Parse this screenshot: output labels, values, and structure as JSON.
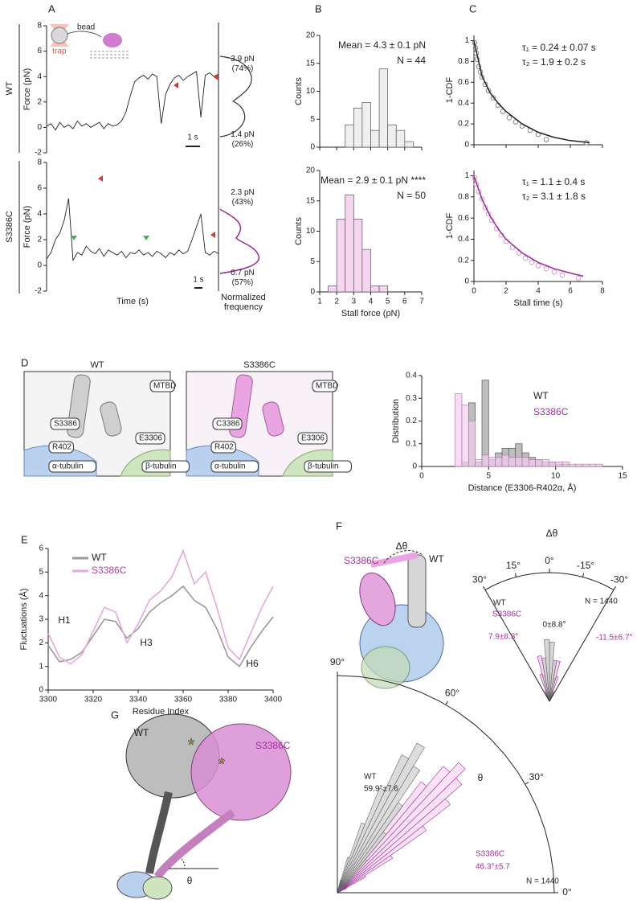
{
  "figure": {
    "panel_labels": [
      "A",
      "B",
      "C",
      "D",
      "E",
      "F",
      "G"
    ],
    "row_labels": [
      "WT",
      "S3386C"
    ],
    "a_inset": [
      "bead",
      "trap"
    ],
    "a_side_label": "Normalized frequency",
    "d_images": [
      {
        "title": "WT",
        "labels": [
          "MTBD",
          "S3386",
          "E3306",
          "R402",
          "α-tubulin",
          "β-tubulin"
        ]
      },
      {
        "title": "S3386C",
        "labels": [
          "MTBD",
          "C3386",
          "E3306",
          "R402",
          "α-tubulin",
          "β-tubulin"
        ]
      }
    ],
    "f_structure": [
      "S3386C",
      "WT",
      "Δθ"
    ],
    "g_structure": [
      "WT",
      "S3386C",
      "θ"
    ]
  },
  "chart_data": [
    {
      "type": "line",
      "ylabel": "Force (pN)",
      "color": "#222222",
      "ylim": [
        -2,
        8
      ],
      "yticks": [
        -2,
        0,
        2,
        4,
        6,
        8
      ],
      "values": [
        0.1,
        0.3,
        -0.2,
        0.4,
        0,
        0.2,
        -0.1,
        0.5,
        0.1,
        0.3,
        0,
        0.2,
        0.4,
        -0.1,
        0.3,
        0.1,
        0.2,
        0.5,
        1.2,
        2.5,
        3.6,
        3.9,
        4.1,
        3.8,
        4.2,
        4.0,
        0.3,
        2.6,
        3.4,
        3.9,
        4.1,
        3.7,
        4.0,
        4.2,
        4.4,
        0.8,
        4.1,
        4.3,
        4.0,
        4.2
      ],
      "annotations": [
        "3.9 pN (74%)",
        "1.4 pN (26%)",
        "1 s"
      ]
    },
    {
      "type": "line",
      "ylabel": "Force (pN)",
      "xlabel": "Time (s)",
      "color": "#222222",
      "ylim": [
        -2,
        8
      ],
      "yticks": [
        -2,
        0,
        2,
        4,
        6,
        8
      ],
      "values": [
        0.5,
        1.0,
        2.0,
        2.5,
        3.5,
        5.2,
        0.4,
        1.0,
        0.8,
        1.5,
        1.1,
        0.9,
        1.3,
        0.7,
        1.2,
        1.0,
        0.8,
        1.1,
        0.6,
        1.0,
        0.9,
        1.2,
        0.8,
        1.0,
        0.7,
        1.1,
        0.9,
        0.6,
        1.0,
        0.8,
        1.2,
        0.9,
        1.1,
        2.0,
        3.0,
        4.0,
        1.0,
        0.8,
        1.1,
        0.9
      ],
      "annotations": [
        "2.3 pN (43%)",
        "0.7 pN (57%)",
        "1 s"
      ]
    },
    {
      "type": "histogram",
      "ylabel": "Counts",
      "color": "#efefef",
      "xlim": [
        1,
        7
      ],
      "xticks": [
        1,
        2,
        3,
        4,
        5,
        6,
        7
      ],
      "ylim": [
        0,
        20
      ],
      "yticks": [
        0,
        5,
        10,
        15,
        20
      ],
      "bins": [
        2.5,
        3,
        3.5,
        4,
        4.5,
        5,
        5.5,
        6,
        6.5
      ],
      "values": [
        4,
        7,
        8,
        3,
        14,
        4,
        3,
        1
      ],
      "annotations": [
        "Mean = 4.3 ± 0.1 pN",
        "N = 44"
      ]
    },
    {
      "type": "histogram",
      "ylabel": "Counts",
      "xlabel": "Stall force (pN)",
      "color": "#f6d5f1",
      "xlim": [
        1,
        7
      ],
      "xticks": [
        1,
        2,
        3,
        4,
        5,
        6,
        7
      ],
      "ylim": [
        0,
        20
      ],
      "yticks": [
        0,
        5,
        10,
        15,
        20
      ],
      "bins": [
        1.5,
        2,
        2.5,
        3,
        3.5,
        4,
        4.5,
        5
      ],
      "values": [
        1,
        12,
        16,
        12,
        7,
        1,
        1
      ],
      "annotations": [
        "Mean = 2.9 ± 0.1 pN ****",
        "N = 50"
      ]
    },
    {
      "type": "scatter",
      "ylabel": "1-CDF",
      "xlim": [
        0,
        8
      ],
      "xticks": [
        0,
        2,
        4,
        6,
        8
      ],
      "ylim": [
        0,
        1.05
      ],
      "yticks": [
        0,
        0.2,
        0.4,
        0.6,
        0.8,
        1
      ],
      "series": [
        {
          "kind": "markers",
          "color": "#888888",
          "x": [
            0.05,
            0.1,
            0.15,
            0.2,
            0.3,
            0.4,
            0.5,
            0.7,
            0.9,
            1.2,
            1.5,
            1.8,
            2.2,
            2.6,
            3.0,
            3.5,
            4.0,
            4.5,
            7.0
          ],
          "values": [
            0.98,
            0.93,
            0.88,
            0.82,
            0.75,
            0.7,
            0.65,
            0.58,
            0.52,
            0.45,
            0.38,
            0.32,
            0.26,
            0.22,
            0.18,
            0.14,
            0.1,
            0.05,
            0.02
          ]
        },
        {
          "kind": "line",
          "color": "#222222",
          "x": [
            0,
            0.5,
            1,
            1.5,
            2,
            3,
            4,
            5,
            6,
            7.2
          ],
          "values": [
            1,
            0.66,
            0.5,
            0.4,
            0.32,
            0.2,
            0.12,
            0.07,
            0.04,
            0.02
          ]
        }
      ],
      "annotations": [
        "τ₁ = 0.24 ± 0.07 s",
        "τ₂ = 1.9 ± 0.2 s"
      ]
    },
    {
      "type": "scatter",
      "ylabel": "1-CDF",
      "xlabel": "Stall time (s)",
      "xlim": [
        0,
        8
      ],
      "xticks": [
        0,
        2,
        4,
        6,
        8
      ],
      "ylim": [
        0,
        1.05
      ],
      "yticks": [
        0,
        0.2,
        0.4,
        0.6,
        0.8,
        1
      ],
      "series": [
        {
          "kind": "markers",
          "color": "#d69ad2",
          "x": [
            0.05,
            0.15,
            0.3,
            0.5,
            0.7,
            0.9,
            1.1,
            1.4,
            1.7,
            2.0,
            2.4,
            2.8,
            3.2,
            3.6,
            4.0,
            4.5,
            5.0,
            5.5,
            6.5
          ],
          "values": [
            0.98,
            0.92,
            0.85,
            0.78,
            0.7,
            0.64,
            0.58,
            0.5,
            0.44,
            0.38,
            0.32,
            0.27,
            0.22,
            0.18,
            0.15,
            0.12,
            0.09,
            0.06,
            0.03
          ]
        },
        {
          "kind": "line",
          "color": "#9a2a94",
          "x": [
            0,
            0.5,
            1,
            1.5,
            2,
            3,
            4,
            5,
            6,
            6.8
          ],
          "values": [
            1,
            0.78,
            0.62,
            0.5,
            0.4,
            0.27,
            0.18,
            0.12,
            0.08,
            0.05
          ]
        }
      ],
      "annotations": [
        "τ₁ = 1.1 ± 0.4 s",
        "τ₂ = 3.1 ± 1.8 s"
      ]
    },
    {
      "type": "histogram",
      "ylabel": "Distribution",
      "xlabel": "Distance (E3306-R402α, Å)",
      "xlim": [
        0,
        15
      ],
      "xticks": [
        0,
        5,
        10,
        15
      ],
      "ylim": [
        0,
        0.4
      ],
      "yticks": [
        0,
        0.1,
        0.2,
        0.3,
        0.4
      ],
      "bins": [
        2.5,
        3,
        3.5,
        4,
        4.5,
        5,
        5.5,
        6,
        6.5,
        7,
        7.5,
        8,
        8.5,
        9,
        9.5,
        10,
        10.5,
        11,
        11.5,
        12,
        12.5,
        13,
        13.5
      ],
      "series": [
        {
          "name": "WT",
          "color": "#bdbdbd",
          "values": [
            0,
            0.02,
            0.28,
            0.02,
            0.38,
            0.03,
            0.06,
            0.08,
            0.08,
            0.1,
            0.06,
            0.04,
            0.03,
            0.02,
            0.02,
            0.01,
            0.01,
            0,
            0,
            0,
            0,
            0
          ]
        },
        {
          "name": "S3386C",
          "color": "#f3cdee",
          "values": [
            0.32,
            0.27,
            0.2,
            0.03,
            0.05,
            0.04,
            0.04,
            0.05,
            0.04,
            0.04,
            0.04,
            0.03,
            0.03,
            0.03,
            0.02,
            0.02,
            0.02,
            0.01,
            0.01,
            0.01,
            0.01,
            0.01
          ]
        }
      ]
    },
    {
      "type": "line",
      "ylabel": "Fluctuations (Å)",
      "xlabel": "Residue Index",
      "xlim": [
        3300,
        3400
      ],
      "xticks": [
        3300,
        3320,
        3340,
        3360,
        3380,
        3400
      ],
      "ylim": [
        0,
        6
      ],
      "yticks": [
        0,
        1,
        2,
        3,
        4,
        5,
        6
      ],
      "x": [
        3300,
        3305,
        3310,
        3315,
        3320,
        3325,
        3330,
        3335,
        3340,
        3345,
        3350,
        3355,
        3360,
        3365,
        3370,
        3375,
        3380,
        3385,
        3390,
        3395,
        3400
      ],
      "series": [
        {
          "name": "WT",
          "color": "#9a9a9a",
          "values": [
            1.9,
            1.2,
            1.3,
            1.6,
            2.3,
            3.0,
            2.9,
            2.2,
            2.6,
            3.3,
            3.7,
            4.0,
            4.4,
            3.8,
            3.5,
            2.6,
            1.4,
            1.0,
            1.8,
            2.5,
            3.1
          ]
        },
        {
          "name": "S3386C",
          "color": "#e3a9dc",
          "values": [
            2.4,
            1.4,
            1.1,
            1.5,
            2.5,
            3.5,
            3.3,
            2.0,
            2.8,
            3.8,
            4.2,
            4.8,
            5.9,
            4.5,
            5.0,
            3.5,
            1.8,
            1.3,
            2.4,
            3.5,
            4.4
          ]
        }
      ],
      "annotations": [
        "H1",
        "H3",
        "H6"
      ]
    },
    {
      "type": "polar-histogram",
      "thetalim": [
        -30,
        30
      ],
      "rlim": [
        0,
        1
      ],
      "thetaticks": [
        {
          "value": 30,
          "label": "30°"
        },
        {
          "value": 15,
          "label": "15°"
        },
        {
          "value": 0,
          "label": "0°"
        },
        {
          "value": -15,
          "label": "-15°"
        },
        {
          "value": -30,
          "label": "-30°"
        }
      ],
      "bins": [
        -30,
        -25,
        -20,
        -15,
        -10,
        -5,
        0,
        5,
        10,
        15,
        20,
        25,
        30
      ],
      "series": [
        {
          "name": "S3386C",
          "color": "#f3cdee",
          "values": [
            0.02,
            0.08,
            0.2,
            0.32,
            0.3,
            0.2,
            0.22,
            0.32,
            0.36,
            0.22,
            0.08,
            0.02
          ]
        },
        {
          "name": "WT",
          "color": "#cfcfcf",
          "values": [
            0.01,
            0.03,
            0.08,
            0.18,
            0.32,
            0.46,
            0.48,
            0.34,
            0.2,
            0.09,
            0.03,
            0.01
          ]
        }
      ],
      "annotations": [
        "Δθ",
        "N = 1440",
        "0±8.8°",
        "7.9±8.3°",
        "-11.5±6.7°"
      ]
    },
    {
      "type": "polar-histogram",
      "thetalim": [
        0,
        90
      ],
      "rlim": [
        0,
        1
      ],
      "thetaticks": [
        {
          "value": 0,
          "label": "0°"
        },
        {
          "value": 30,
          "label": "30°"
        },
        {
          "value": 60,
          "label": "60°"
        },
        {
          "value": 90,
          "label": "90°"
        }
      ],
      "bins": [
        20,
        23,
        26,
        29,
        32,
        35,
        38,
        41,
        44,
        47,
        50,
        53,
        56,
        59,
        62,
        65,
        68,
        71,
        74,
        77,
        80
      ],
      "series": [
        {
          "name": "S3386C",
          "color": "#f8dcf4",
          "values": [
            0,
            0.02,
            0.05,
            0.15,
            0.3,
            0.5,
            0.66,
            0.76,
            0.82,
            0.76,
            0.64,
            0.48,
            0.3,
            0.15,
            0.06,
            0.02,
            0,
            0,
            0,
            0
          ]
        },
        {
          "name": "WT",
          "color": "#d6d6d6",
          "values": [
            0,
            0,
            0,
            0,
            0,
            0,
            0,
            0.05,
            0.1,
            0.2,
            0.35,
            0.5,
            0.68,
            0.78,
            0.7,
            0.52,
            0.34,
            0.17,
            0.06,
            0.02
          ]
        }
      ],
      "annotations": [
        "θ",
        "59.9°±7.6",
        "46.3°±5.7",
        "N = 1440"
      ]
    }
  ]
}
